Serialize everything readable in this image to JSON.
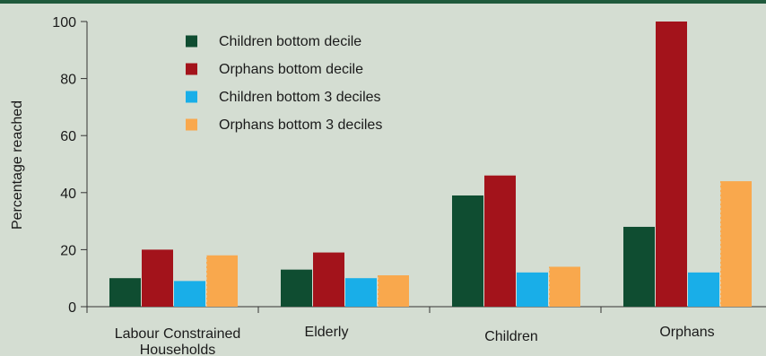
{
  "chart_data": {
    "type": "bar",
    "ylabel": "Percentage  reached",
    "ylim": [
      0,
      100
    ],
    "yticks": [
      0,
      20,
      40,
      60,
      80,
      100
    ],
    "grid": false,
    "legend_position": "top-left",
    "categories": [
      [
        "Labour Constrained",
        "Households"
      ],
      [
        "Elderly"
      ],
      [
        "Children"
      ],
      [
        "Orphans"
      ]
    ],
    "series": [
      {
        "name": "Children bottom decile",
        "color": "#0f4d31",
        "values": [
          10,
          13,
          39,
          28
        ]
      },
      {
        "name": "Orphans bottom decile",
        "color": "#a3131b",
        "values": [
          20,
          19,
          46,
          100
        ]
      },
      {
        "name": "Children bottom 3 deciles",
        "color": "#19aee8",
        "values": [
          9,
          10,
          12,
          12
        ]
      },
      {
        "name": "Orphans bottom 3 deciles",
        "color": "#f9a84d",
        "values": [
          18,
          11,
          14,
          44
        ]
      }
    ]
  },
  "colors": {
    "background": "#d4ddd2",
    "top_bar": "#1f5a3c",
    "axis": "#333333",
    "bar_divider": "#d4ddd2"
  }
}
